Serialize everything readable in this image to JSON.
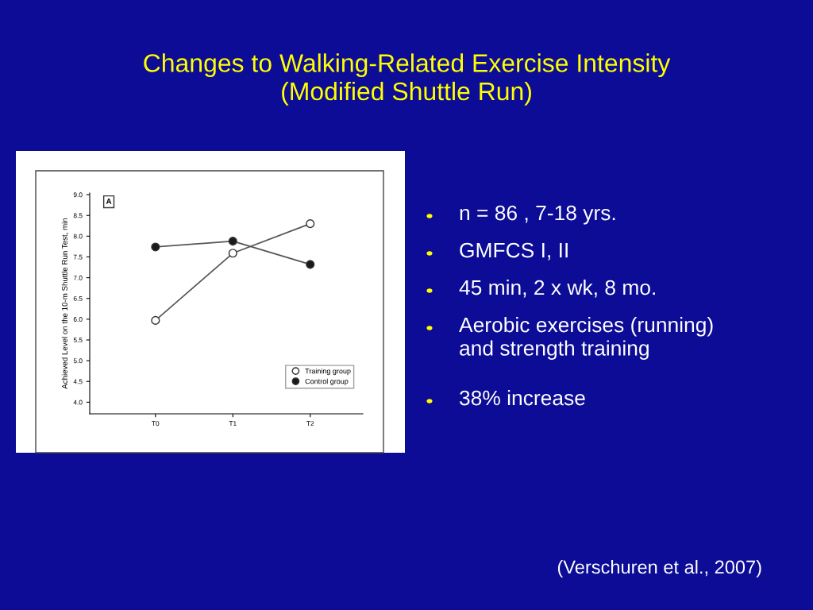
{
  "chart_data": {
    "type": "line",
    "title": "Changes to Walking-Related Exercise Intensity\n(Modified Shuttle Run)",
    "ylabel": "Achieved Level on the 10-m Shuttle Run Test, min",
    "categories": [
      "T0",
      "T1",
      "T2"
    ],
    "series": [
      {
        "name": "Training group",
        "color": "#ffffff",
        "values": [
          5.97,
          7.59,
          8.3
        ]
      },
      {
        "name": "Control group",
        "color": "#1a1a1a",
        "values": [
          7.74,
          7.88,
          7.32
        ]
      }
    ],
    "ylim": [
      3.72,
      9.04
    ],
    "yticks": [
      {
        "value": 4,
        "label": "4.0"
      },
      4.5,
      {
        "value": 5,
        "label": "5.0"
      },
      5.5,
      {
        "value": 6,
        "label": "6.0"
      },
      6.5,
      {
        "value": 7,
        "label": "7.0"
      },
      7.5,
      {
        "value": 8,
        "label": "8.0"
      },
      8.5,
      {
        "value": 9,
        "label": "9.0"
      }
    ],
    "marker": "circle",
    "line_style": "solid",
    "grid": false,
    "legend": "bottom right",
    "annotations": [
      "n = 86 , 7-18 yrs.",
      "GMFCS I, II",
      "45 min, 2 x wk, 8 mo.",
      "Aerobic exercises (running)\nand strength training",
      "38% increase",
      "(Verschuren et al., 2007)",
      "A"
    ]
  }
}
